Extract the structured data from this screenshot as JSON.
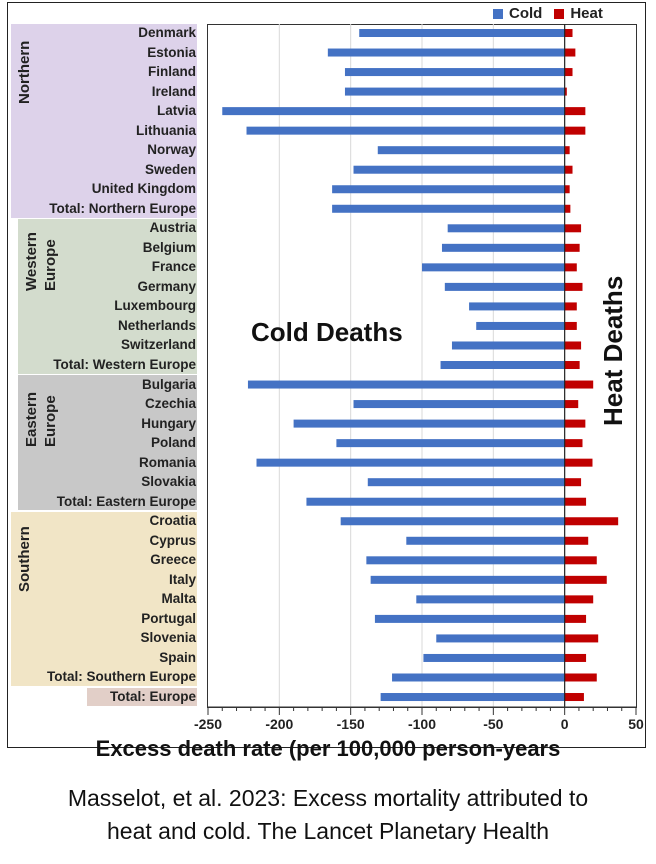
{
  "chart_data": {
    "type": "bar",
    "orientation": "horizontal",
    "title": "",
    "xlabel": "Excess death rate (per 100,000 person-years",
    "ylabel": "",
    "xlim": [
      -250,
      50
    ],
    "xticks": [
      -250,
      -200,
      -150,
      -100,
      -50,
      0,
      50
    ],
    "xtick_labels": [
      "-250",
      "-200",
      "-150",
      "-100",
      "-50",
      "0",
      "50"
    ],
    "grid": "vertical",
    "legend": {
      "placement": "top-right",
      "entries": [
        {
          "name": "Cold",
          "color": "#4472c4"
        },
        {
          "name": "Heat",
          "color": "#c00000"
        }
      ]
    },
    "annotations": [
      {
        "id": "cold",
        "text": "Cold Deaths"
      },
      {
        "id": "heat",
        "text": "Heat Deaths"
      }
    ],
    "groups": [
      {
        "name": "Northern",
        "color": "#ddd2ea",
        "rows": 10
      },
      {
        "name": "Western Europe",
        "color": "#d3dccd",
        "rows": 8
      },
      {
        "name": "Eastern Europe",
        "color": "#c8c8c8",
        "rows": 7
      },
      {
        "name": "Southern",
        "color": "#f1e5c6",
        "rows": 9
      },
      {
        "name": "",
        "color": "#e2cfc8",
        "rows": 1
      }
    ],
    "categories": [
      "Denmark",
      "Estonia",
      "Finland",
      "Ireland",
      "Latvia",
      "Lithuania",
      "Norway",
      "Sweden",
      "United Kingdom",
      "Total: Northern Europe",
      "Austria",
      "Belgium",
      "France",
      "Germany",
      "Luxembourg",
      "Netherlands",
      "Switzerland",
      "Total: Western Europe",
      "Bulgaria",
      "Czechia",
      "Hungary",
      "Poland",
      "Romania",
      "Slovakia",
      "Total: Eastern Europe",
      "Croatia",
      "Cyprus",
      "Greece",
      "Italy",
      "Malta",
      "Portugal",
      "Slovenia",
      "Spain",
      "Total: Southern Europe",
      "Total: Europe"
    ],
    "series": [
      {
        "name": "Cold",
        "color": "#4472c4",
        "values": [
          -144,
          -166,
          -154,
          -154,
          -240,
          -223,
          -131,
          -148,
          -163,
          -163,
          -82,
          -86,
          -100,
          -84,
          -67,
          -62,
          -79,
          -87,
          -222,
          -148,
          -190,
          -160,
          -216,
          -138,
          -181,
          -157,
          -111,
          -139,
          -136,
          -104,
          -133,
          -90,
          -99,
          -121,
          -129
        ]
      },
      {
        "name": "Heat",
        "color": "#c00000",
        "values": [
          5.5,
          7.5,
          5.5,
          1.5,
          14.5,
          14.5,
          3.5,
          5.5,
          3.5,
          4,
          11.5,
          10.5,
          8.5,
          12.5,
          8.5,
          8.5,
          11.5,
          10.5,
          20,
          9.5,
          14.5,
          12.5,
          19.5,
          11.5,
          15,
          37.5,
          16.5,
          22.5,
          29.5,
          20,
          15,
          23.5,
          15,
          22.5,
          13.5
        ]
      }
    ]
  },
  "caption": {
    "line1": "Masselot, et al. 2023: Excess mortality attributed to",
    "line2": "heat and cold. The Lancet Planetary Health"
  }
}
